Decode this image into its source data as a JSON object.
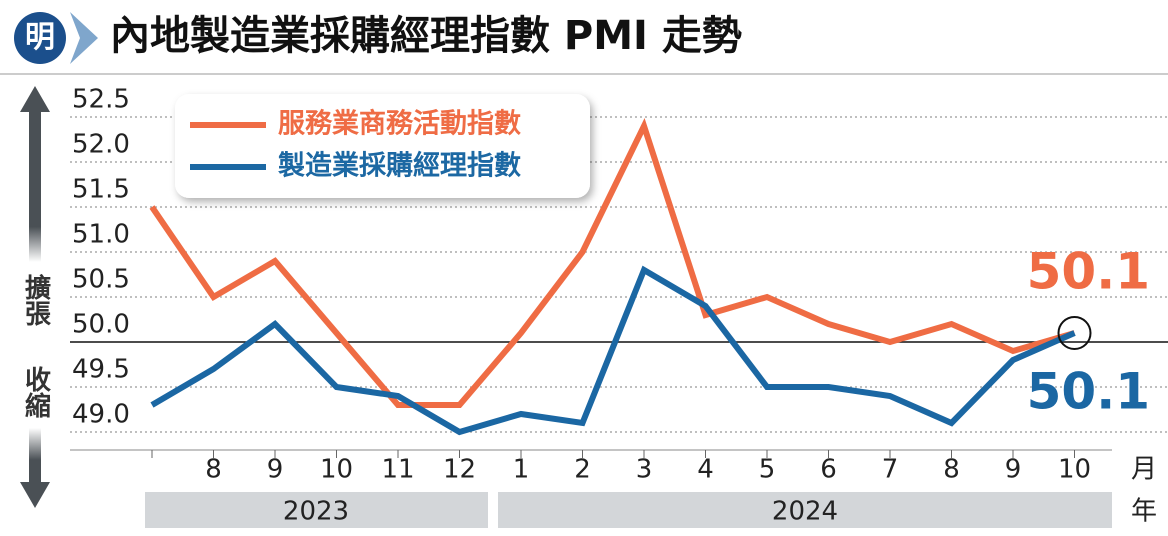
{
  "chart_data": {
    "type": "line",
    "title": "內地製造業採購經理指數 PMI 走勢",
    "logo": "明",
    "categories": [
      null,
      "8",
      "9",
      "10",
      "11",
      "12",
      "1",
      "2",
      "3",
      "4",
      "5",
      "6",
      "7",
      "8",
      "9",
      "10"
    ],
    "x_unit": "月",
    "year_unit": "年",
    "years": [
      "2023",
      "2024"
    ],
    "expansion_label": "擴張",
    "contraction_label": "收縮",
    "series": [
      {
        "name": "服務業商務活動指數",
        "color": "#ef6c44",
        "values": [
          51.5,
          50.5,
          50.9,
          50.1,
          49.3,
          49.3,
          50.1,
          51.0,
          52.4,
          50.3,
          50.5,
          50.2,
          50.0,
          50.2,
          49.9,
          50.1
        ]
      },
      {
        "name": "製造業採購經理指數",
        "color": "#1b67a3",
        "values": [
          49.3,
          49.7,
          50.2,
          49.5,
          49.4,
          49.0,
          49.2,
          49.1,
          50.8,
          50.4,
          49.5,
          49.5,
          49.4,
          49.1,
          49.8,
          50.1
        ]
      }
    ],
    "annotations": [
      {
        "text": "50.1",
        "series": 0
      },
      {
        "text": "50.1",
        "series": 1
      }
    ],
    "ylim": [
      48.8,
      52.8
    ],
    "yticks": [
      {
        "value": 49,
        "label": "49.0"
      },
      49.5,
      {
        "value": 50,
        "label": "50.0"
      },
      50.5,
      {
        "value": 51,
        "label": "51.0"
      },
      51.5,
      {
        "value": 52,
        "label": "52.0"
      },
      52.5
    ],
    "reference_line": 50,
    "grid": true
  }
}
